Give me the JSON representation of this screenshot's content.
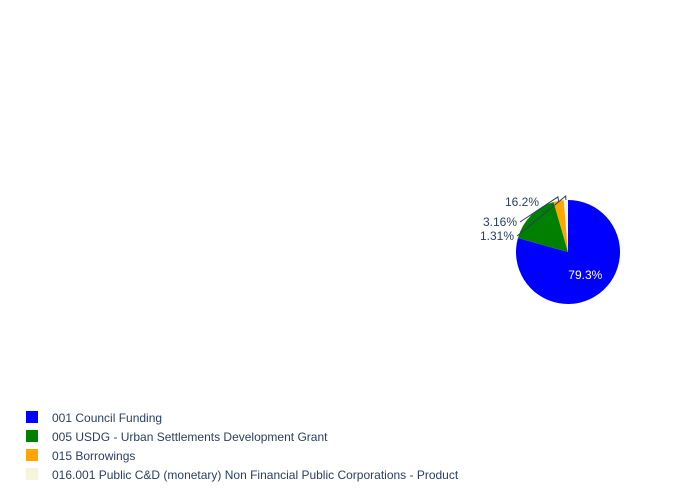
{
  "chart_data": {
    "type": "pie",
    "title": "",
    "start_angle_deg": 90,
    "direction": "clockwise",
    "legend_position": "bottom-left",
    "slices": [
      {
        "label": "001 Council Funding",
        "value": 79.3,
        "text": "79.3%",
        "color": "#0000ff",
        "text_position": "inside",
        "text_color": "#ffffff"
      },
      {
        "label": "005 USDG - Urban Settlements Development Grant",
        "value": 16.2,
        "text": "16.2%",
        "color": "#008000",
        "text_position": "outside",
        "text_color": "#2a3f5f"
      },
      {
        "label": "015 Borrowings",
        "value": 3.16,
        "text": "3.16%",
        "color": "#ffa500",
        "text_position": "outside",
        "text_color": "#2a3f5f"
      },
      {
        "label": "016.001 Public C&D (monetary) Non Financial Public Corporations - Product",
        "value": 1.31,
        "text": "1.31%",
        "color": "#f5f5dc",
        "text_position": "outside",
        "text_color": "#2a3f5f"
      }
    ]
  }
}
